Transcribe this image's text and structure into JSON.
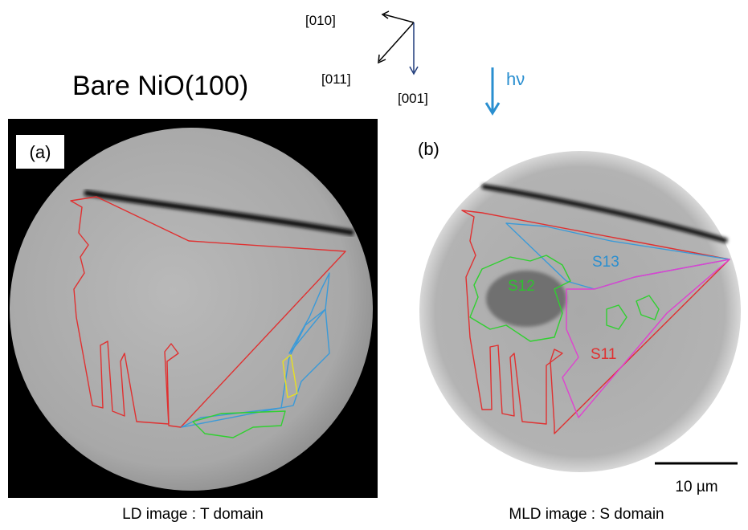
{
  "header": {
    "title": "Bare NiO(100)"
  },
  "axes": {
    "a010": "[010]",
    "a011": "[011]",
    "a001": "[001]",
    "photon": "hν"
  },
  "panels": [
    {
      "label": "(a)",
      "caption": "LD image : T domain"
    },
    {
      "label": "(b)",
      "caption": "MLD image : S domain",
      "regions": [
        "S13",
        "S12",
        "S11"
      ],
      "scale_bar": "10 µm"
    }
  ]
}
